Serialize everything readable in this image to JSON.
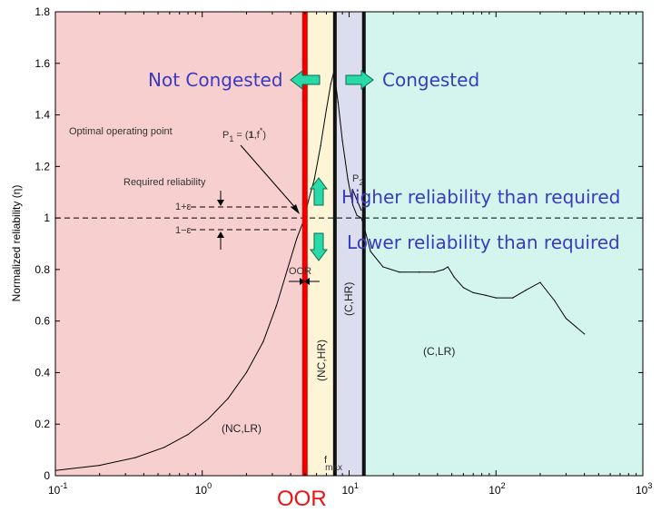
{
  "chart_data": {
    "type": "line",
    "title": "",
    "ylabel": "Normalized reliability (η)",
    "xlabel": "",
    "xscale": "log",
    "xlim": [
      0.1,
      1000
    ],
    "ylim": [
      0,
      1.8
    ],
    "grid": false,
    "x_ticks": [
      {
        "value": 0.1,
        "base": "10",
        "exp": "-1"
      },
      {
        "value": 1,
        "base": "10",
        "exp": "0"
      },
      {
        "value": 10,
        "base": "10",
        "exp": "1"
      },
      {
        "value": 100,
        "base": "10",
        "exp": "2"
      },
      {
        "value": 1000,
        "base": "10",
        "exp": "3"
      }
    ],
    "y_ticks": [
      "0",
      "0.2",
      "0.4",
      "0.6",
      "0.8",
      "1",
      "1.2",
      "1.4",
      "1.6",
      "1.8"
    ],
    "y_tick_values": [
      0,
      0.2,
      0.4,
      0.6,
      0.8,
      1,
      1.2,
      1.4,
      1.6,
      1.8
    ],
    "series": [
      {
        "x": [
          0.1,
          0.2,
          0.35,
          0.55,
          0.8,
          1.1,
          1.5,
          2.0,
          2.6,
          3.2,
          3.8,
          4.4,
          4.9,
          5.3,
          5.8,
          6.4,
          7.0,
          7.5,
          7.9,
          8.4,
          9.0,
          9.8,
          10.6,
          11.3,
          12.1,
          12.6,
          14,
          17,
          22,
          30,
          38,
          44,
          47,
          52,
          60,
          70,
          85,
          100,
          130,
          160,
          200,
          250,
          300,
          400
        ],
        "y": [
          0.02,
          0.04,
          0.07,
          0.11,
          0.16,
          0.22,
          0.3,
          0.4,
          0.52,
          0.66,
          0.8,
          0.92,
          0.99,
          1.07,
          1.15,
          1.28,
          1.42,
          1.52,
          1.57,
          1.45,
          1.3,
          1.15,
          1.05,
          1.01,
          1.0,
          0.97,
          0.87,
          0.81,
          0.79,
          0.79,
          0.79,
          0.8,
          0.81,
          0.77,
          0.73,
          0.71,
          0.7,
          0.69,
          0.69,
          0.72,
          0.75,
          0.68,
          0.61,
          0.55
        ]
      }
    ],
    "regions": [
      {
        "label": "(NC,LR)",
        "x_start": 0.1,
        "x_end": 5.0,
        "color": "#f8cfcf"
      },
      {
        "label": "(NC,HR)",
        "x_start": 5.0,
        "x_end": 8.0,
        "color": "#fdf5d6"
      },
      {
        "label": "(C,HR)",
        "x_start": 8.0,
        "x_end": 12.6,
        "color": "#ddddf0"
      },
      {
        "label": "(C,LR)",
        "x_start": 12.6,
        "x_end": 1000,
        "color": "#d4f5ee"
      }
    ],
    "vertical_lines": [
      {
        "x": 5.0,
        "color": "#ee0000",
        "width": "thick"
      },
      {
        "x": 8.0,
        "color": "#111111",
        "width": "medium"
      },
      {
        "x": 12.6,
        "color": "#111111",
        "width": "medium"
      }
    ],
    "reference_line": {
      "y": 1.0,
      "style": "dashed"
    },
    "epsilon_lines": [
      1.05,
      0.95
    ],
    "annotations": {
      "optimal_point": "Optimal operating point",
      "p1_label": "P",
      "p1_sub": "1",
      "p1_eq": " = (",
      "p1_bold": "1",
      "p1_f": ",f",
      "p1_star": "*",
      "p1_close": ")",
      "p2_label": "P",
      "p2_sub": "2",
      "required": "Required reliability",
      "one_plus_eps": "1+ε",
      "one_minus_eps": "1−ε",
      "oor_small": "OOR",
      "fmax": "f",
      "fmax_sub": "max",
      "not_congested": "Not Congested",
      "congested": "Congested",
      "higher": "Higher reliability than required",
      "lower": "Lower reliability than required",
      "oor_big": "OOR"
    },
    "colors": {
      "arrow_fill": "#2ad9a8",
      "arrow_stroke": "#0a6a50",
      "blue_text": "#3a3ac0",
      "oor_text": "#ee1111"
    }
  }
}
